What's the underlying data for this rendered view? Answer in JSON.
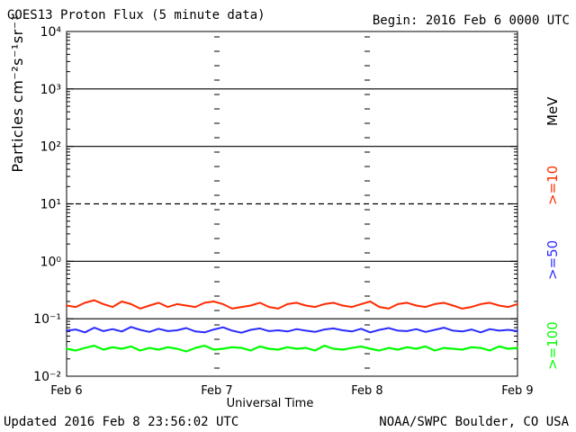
{
  "page": {
    "begin_text": "Begin: 2016 Feb 6 0000 UTC",
    "updated_text": "Updated 2016 Feb  8 23:56:02 UTC",
    "source_text": "NOAA/SWPC Boulder, CO USA"
  },
  "chart_data": {
    "type": "line",
    "title": "GOES13 Proton Flux (5 minute data)",
    "xlabel": "Universal Time",
    "ylabel": "Particles cm⁻²s⁻¹sr⁻¹",
    "x_ticks": [
      "Feb 6",
      "Feb 7",
      "Feb 8",
      "Feb 9"
    ],
    "y_ticks": [
      "10⁻²",
      "10⁻¹",
      "10⁰",
      "10¹",
      "10²",
      "10³",
      "10⁴"
    ],
    "y_scale": "log",
    "ylim": [
      0.01,
      10000
    ],
    "legend": {
      "unit": "MeV",
      "labels": [
        ">=10",
        ">=50",
        ">=100"
      ]
    },
    "colors": {
      "series_10": "#ff2a00",
      "series_50": "#2b2bff",
      "series_100": "#00ff00",
      "grid": "#000000",
      "background": "#ffffff"
    },
    "series": [
      {
        "name": ">=10",
        "color": "#ff2a00",
        "values": [
          0.17,
          0.16,
          0.19,
          0.21,
          0.18,
          0.16,
          0.2,
          0.18,
          0.15,
          0.17,
          0.19,
          0.16,
          0.18,
          0.17,
          0.16,
          0.19,
          0.2,
          0.18,
          0.15,
          0.16,
          0.17,
          0.19,
          0.16,
          0.15,
          0.18,
          0.19,
          0.17,
          0.16,
          0.18,
          0.19,
          0.17,
          0.16,
          0.18,
          0.2,
          0.16,
          0.15,
          0.18,
          0.19,
          0.17,
          0.16,
          0.18,
          0.19,
          0.17,
          0.15,
          0.16,
          0.18,
          0.19,
          0.17,
          0.16,
          0.18
        ]
      },
      {
        "name": ">=50",
        "color": "#2b2bff",
        "values": [
          0.062,
          0.065,
          0.058,
          0.07,
          0.061,
          0.066,
          0.06,
          0.072,
          0.064,
          0.059,
          0.067,
          0.061,
          0.063,
          0.069,
          0.06,
          0.058,
          0.065,
          0.071,
          0.062,
          0.057,
          0.064,
          0.068,
          0.061,
          0.063,
          0.06,
          0.066,
          0.062,
          0.059,
          0.065,
          0.068,
          0.063,
          0.06,
          0.067,
          0.058,
          0.064,
          0.069,
          0.062,
          0.061,
          0.066,
          0.059,
          0.064,
          0.07,
          0.062,
          0.06,
          0.065,
          0.058,
          0.066,
          0.062,
          0.064,
          0.061
        ]
      },
      {
        "name": ">=100",
        "color": "#00ff00",
        "values": [
          0.03,
          0.028,
          0.031,
          0.034,
          0.029,
          0.032,
          0.03,
          0.033,
          0.028,
          0.031,
          0.029,
          0.032,
          0.03,
          0.027,
          0.031,
          0.034,
          0.029,
          0.03,
          0.032,
          0.031,
          0.028,
          0.033,
          0.03,
          0.029,
          0.032,
          0.03,
          0.031,
          0.028,
          0.034,
          0.03,
          0.029,
          0.031,
          0.033,
          0.03,
          0.028,
          0.031,
          0.029,
          0.032,
          0.03,
          0.033,
          0.028,
          0.031,
          0.03,
          0.029,
          0.032,
          0.031,
          0.028,
          0.033,
          0.03,
          0.031
        ]
      }
    ]
  }
}
